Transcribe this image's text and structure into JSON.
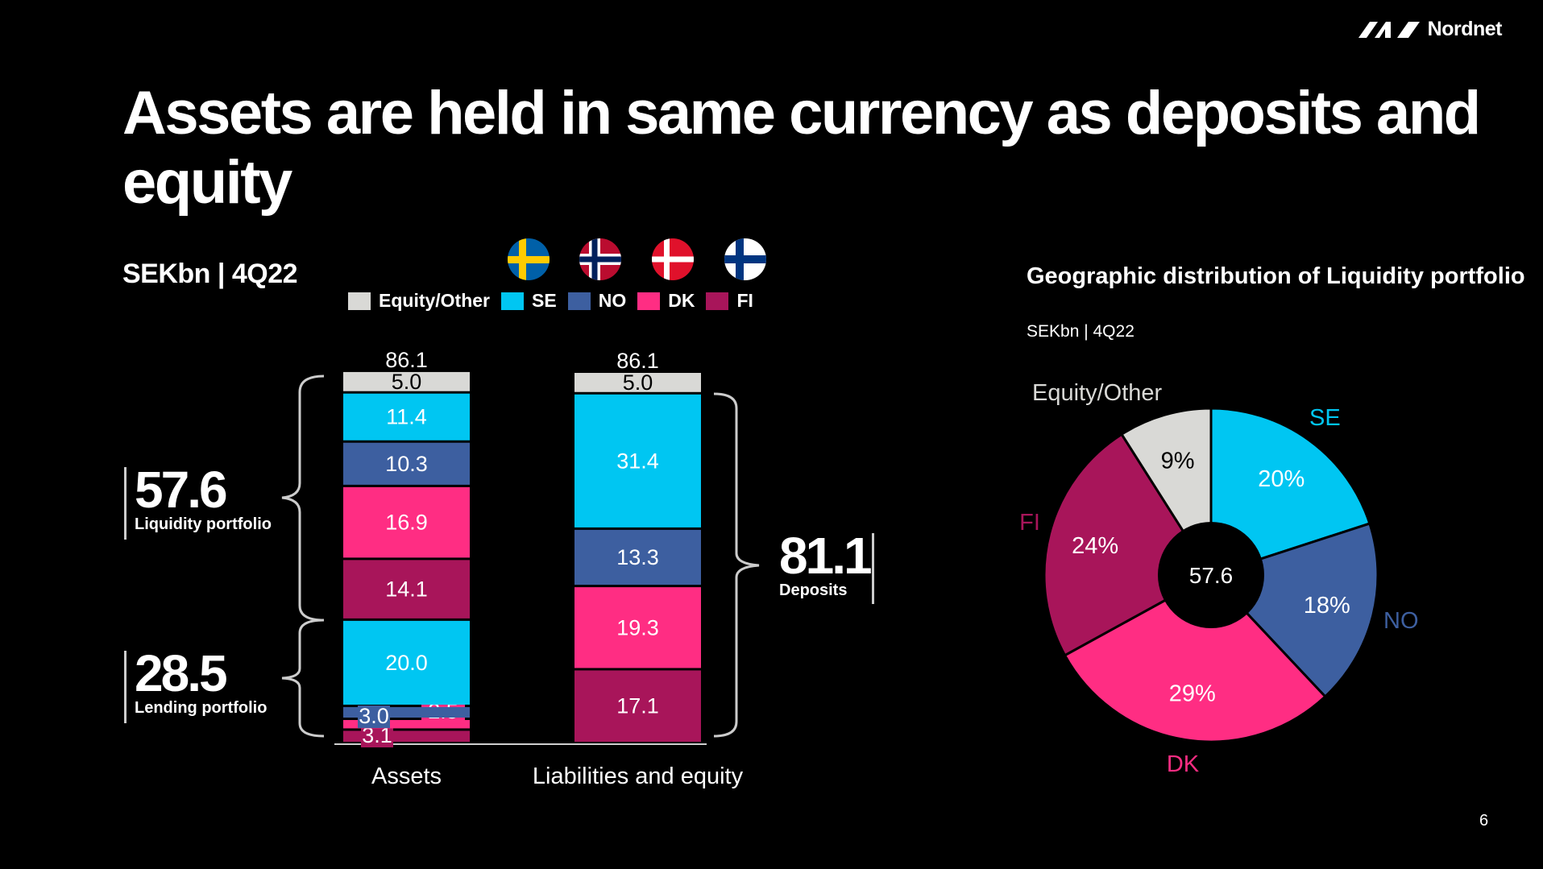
{
  "brand": {
    "name": "Nordnet"
  },
  "slide": {
    "title": "Assets are held in same currency as deposits and equity",
    "subtitle": "SEKbn | 4Q22",
    "page_number": "6"
  },
  "flags": [
    "sweden-flag-icon",
    "norway-flag-icon",
    "denmark-flag-icon",
    "finland-flag-icon"
  ],
  "colors": {
    "equity_other": "#d9d9d6",
    "SE": "#00c6f2",
    "NO": "#3d5fa0",
    "DK": "#ff2d83",
    "FI": "#a8155a"
  },
  "legend": [
    "Equity/Other",
    "SE",
    "NO",
    "DK",
    "FI"
  ],
  "callouts": {
    "liquidity": {
      "value": "57.6",
      "label": "Liquidity portfolio"
    },
    "lending": {
      "value": "28.5",
      "label": "Lending portfolio"
    },
    "deposits": {
      "value": "81.1",
      "label": "Deposits"
    }
  },
  "pie_title": "Geographic distribution of Liquidity portfolio",
  "pie_subtitle": "SEKbn | 4Q22",
  "chart_data": [
    {
      "type": "bar",
      "stacked": true,
      "categories": [
        "Assets",
        "Liabilities and equity"
      ],
      "totals": [
        "86.1",
        "86.1"
      ],
      "stacks": [
        {
          "category": "Assets",
          "segments": [
            {
              "series": "FI",
              "value": 3.1,
              "label": "3.1",
              "group": "Lending portfolio"
            },
            {
              "series": "DK",
              "value": 2.5,
              "label": "2.5",
              "group": "Lending portfolio"
            },
            {
              "series": "NO",
              "value": 3.0,
              "label": "3.0",
              "group": "Lending portfolio"
            },
            {
              "series": "SE",
              "value": 20.0,
              "label": "20.0",
              "group": "Lending portfolio"
            },
            {
              "series": "FI",
              "value": 14.1,
              "label": "14.1",
              "group": "Liquidity portfolio"
            },
            {
              "series": "DK",
              "value": 16.9,
              "label": "16.9",
              "group": "Liquidity portfolio"
            },
            {
              "series": "NO",
              "value": 10.3,
              "label": "10.3",
              "group": "Liquidity portfolio"
            },
            {
              "series": "SE",
              "value": 11.4,
              "label": "11.4",
              "group": "Liquidity portfolio"
            },
            {
              "series": "Equity/Other",
              "value": 5.0,
              "label": "5.0"
            }
          ]
        },
        {
          "category": "Liabilities and equity",
          "segments": [
            {
              "series": "FI",
              "value": 17.1,
              "label": "17.1",
              "group": "Deposits"
            },
            {
              "series": "DK",
              "value": 19.3,
              "label": "19.3",
              "group": "Deposits"
            },
            {
              "series": "NO",
              "value": 13.3,
              "label": "13.3",
              "group": "Deposits"
            },
            {
              "series": "SE",
              "value": 31.4,
              "label": "31.4",
              "group": "Deposits"
            },
            {
              "series": "Equity/Other",
              "value": 5.0,
              "label": "5.0"
            }
          ]
        }
      ]
    },
    {
      "type": "pie",
      "donut": true,
      "center_label": "57.6",
      "slices": [
        {
          "name": "SE",
          "value": 20,
          "label": "20%"
        },
        {
          "name": "NO",
          "value": 18,
          "label": "18%"
        },
        {
          "name": "DK",
          "value": 29,
          "label": "29%"
        },
        {
          "name": "FI",
          "value": 24,
          "label": "24%"
        },
        {
          "name": "Equity/Other",
          "value": 9,
          "label": "9%"
        }
      ]
    }
  ]
}
